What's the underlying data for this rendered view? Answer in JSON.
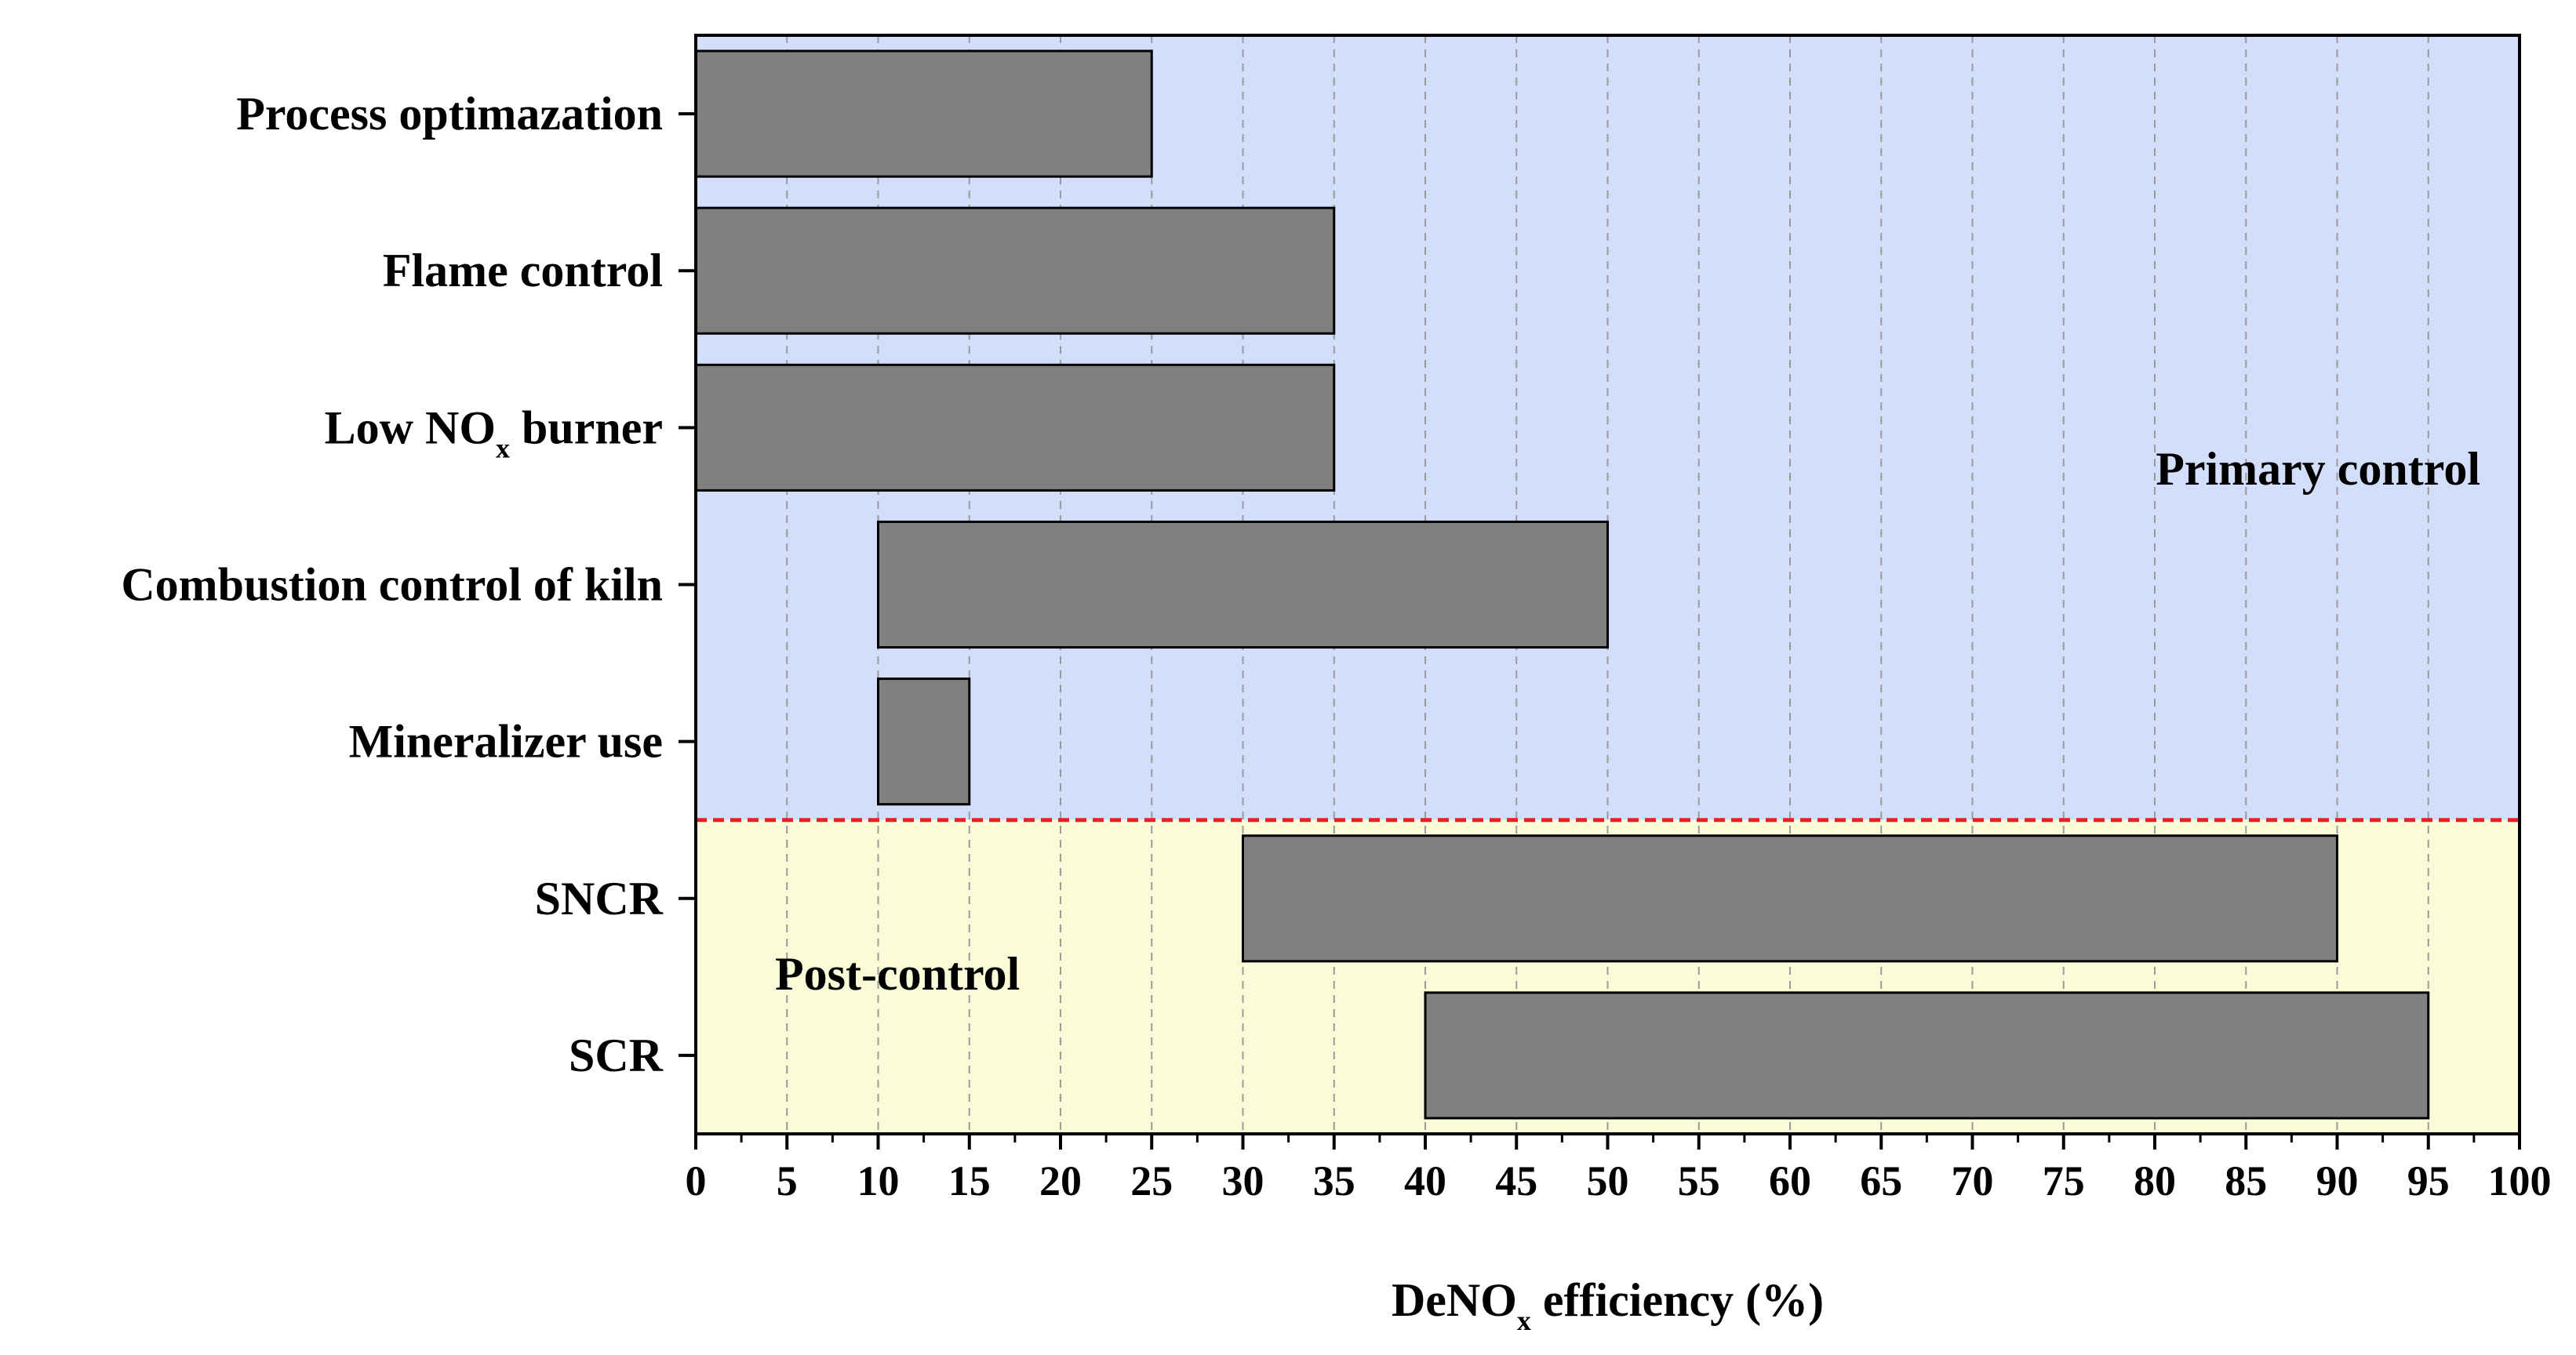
{
  "chart_data": {
    "type": "bar",
    "orientation": "horizontal-range",
    "title": "",
    "xlabel": {
      "prefix": "DeNO",
      "subscript": "x",
      "suffix": " efficiency (%)"
    },
    "ylabel": "",
    "xlim": [
      0,
      100
    ],
    "xticks": [
      0,
      5,
      10,
      15,
      20,
      25,
      30,
      35,
      40,
      45,
      50,
      55,
      60,
      65,
      70,
      75,
      80,
      85,
      90,
      95,
      100
    ],
    "x_grid": "dashed vertical",
    "categories": [
      {
        "label": "Process optimazation",
        "start": 0,
        "end": 25
      },
      {
        "label": "Flame control",
        "start": 0,
        "end": 35
      },
      {
        "label": "Low NO",
        "label_subscript": "x",
        "label_suffix": " burner",
        "start": 0,
        "end": 35
      },
      {
        "label": "Combustion control of kiln",
        "start": 10,
        "end": 50
      },
      {
        "label": "Mineralizer use",
        "start": 10,
        "end": 15
      },
      {
        "label": "SNCR",
        "start": 30,
        "end": 90
      },
      {
        "label": "SCR",
        "start": 40,
        "end": 95
      }
    ],
    "regions": [
      {
        "label": "Primary control",
        "color": "#d3defb",
        "first_category": 0,
        "last_category": 4
      },
      {
        "label": "Post-control",
        "color": "#f9fcd7",
        "first_category": 5,
        "last_category": 6
      }
    ],
    "divider_color": "#ee1c24",
    "bar_color": "#808080"
  }
}
